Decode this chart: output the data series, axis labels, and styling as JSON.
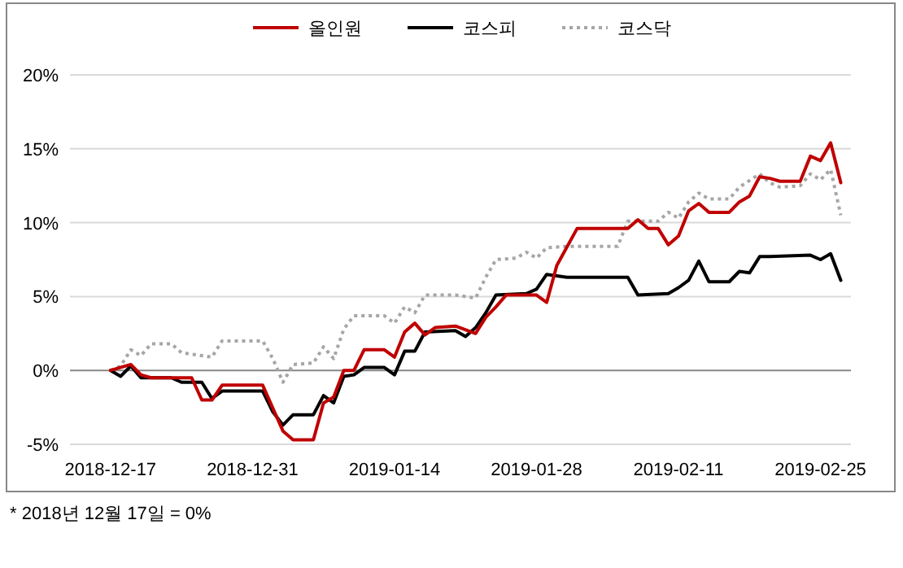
{
  "chart_data": {
    "type": "line",
    "legend": "top",
    "grid": "y",
    "xlim": [
      "2018-12-13",
      "2019-02-28"
    ],
    "xticks": [
      "2018-12-17",
      "2018-12-31",
      "2019-01-14",
      "2019-01-28",
      "2019-02-11",
      "2019-02-25"
    ],
    "ylim": [
      -5,
      20
    ],
    "yticks": [
      {
        "value": -5,
        "label": "-5%"
      },
      {
        "value": 0,
        "label": "0%"
      },
      {
        "value": 5,
        "label": "5%"
      },
      {
        "value": 10,
        "label": "10%"
      },
      {
        "value": 15,
        "label": "15%"
      },
      {
        "value": 20,
        "label": "20%"
      }
    ],
    "annotations": [
      "* 2018년 12월 17일 = 0%"
    ],
    "series": [
      {
        "name": "올인원",
        "color": "#c00000",
        "line_style": "solid",
        "x": [
          "2018-12-17",
          "2018-12-19",
          "2018-12-20",
          "2018-12-21",
          "2018-12-25",
          "2018-12-26",
          "2018-12-27",
          "2018-12-28",
          "2019-01-01",
          "2019-01-03",
          "2019-01-04",
          "2019-01-06",
          "2019-01-07",
          "2019-01-08",
          "2019-01-09",
          "2019-01-10",
          "2019-01-11",
          "2019-01-13",
          "2019-01-14",
          "2019-01-15",
          "2019-01-16",
          "2019-01-17",
          "2019-01-18",
          "2019-01-20",
          "2019-01-22",
          "2019-01-23",
          "2019-01-24",
          "2019-01-25",
          "2019-01-28",
          "2019-01-29",
          "2019-01-30",
          "2019-02-01",
          "2019-02-06",
          "2019-02-07",
          "2019-02-08",
          "2019-02-09",
          "2019-02-10",
          "2019-02-11",
          "2019-02-12",
          "2019-02-13",
          "2019-02-14",
          "2019-02-16",
          "2019-02-17",
          "2019-02-18",
          "2019-02-19",
          "2019-02-20",
          "2019-02-21",
          "2019-02-23",
          "2019-02-24",
          "2019-02-25",
          "2019-02-26",
          "2019-02-27"
        ],
        "values": [
          0,
          0.4,
          -0.3,
          -0.5,
          -0.5,
          -2.0,
          -2.0,
          -1.0,
          -1.0,
          -4.1,
          -4.7,
          -4.7,
          -2.2,
          -1.8,
          0,
          0,
          1.4,
          1.4,
          0.9,
          2.6,
          3.2,
          2.4,
          2.9,
          3.0,
          2.5,
          3.6,
          4.3,
          5.1,
          5.1,
          4.6,
          7.1,
          9.6,
          9.6,
          10.2,
          9.6,
          9.6,
          8.5,
          9.1,
          10.8,
          11.3,
          10.7,
          10.7,
          11.4,
          11.8,
          13.1,
          13.0,
          12.8,
          12.8,
          14.5,
          14.2,
          15.4,
          12.7
        ]
      },
      {
        "name": "코스피",
        "color": "#000000",
        "line_style": "solid",
        "x": [
          "2018-12-17",
          "2018-12-18",
          "2018-12-19",
          "2018-12-20",
          "2018-12-23",
          "2018-12-24",
          "2018-12-26",
          "2018-12-27",
          "2018-12-28",
          "2019-01-01",
          "2019-01-02",
          "2019-01-03",
          "2019-01-04",
          "2019-01-06",
          "2019-01-07",
          "2019-01-08",
          "2019-01-09",
          "2019-01-10",
          "2019-01-11",
          "2019-01-13",
          "2019-01-14",
          "2019-01-15",
          "2019-01-16",
          "2019-01-17",
          "2019-01-20",
          "2019-01-21",
          "2019-01-22",
          "2019-01-23",
          "2019-01-24",
          "2019-01-27",
          "2019-01-28",
          "2019-01-29",
          "2019-01-31",
          "2019-02-06",
          "2019-02-07",
          "2019-02-10",
          "2019-02-11",
          "2019-02-12",
          "2019-02-13",
          "2019-02-14",
          "2019-02-16",
          "2019-02-17",
          "2019-02-18",
          "2019-02-19",
          "2019-02-20",
          "2019-02-24",
          "2019-02-25",
          "2019-02-26",
          "2019-02-27"
        ],
        "values": [
          0,
          -0.4,
          0.3,
          -0.5,
          -0.5,
          -0.8,
          -0.8,
          -1.9,
          -1.4,
          -1.4,
          -2.8,
          -3.7,
          -3.0,
          -3.0,
          -1.7,
          -2.2,
          -0.4,
          -0.3,
          0.2,
          0.2,
          -0.3,
          1.3,
          1.3,
          2.6,
          2.7,
          2.3,
          2.9,
          3.9,
          5.1,
          5.2,
          5.5,
          6.5,
          6.3,
          6.3,
          5.1,
          5.2,
          5.6,
          6.1,
          7.4,
          6.0,
          6.0,
          6.7,
          6.6,
          7.7,
          7.7,
          7.8,
          7.5,
          7.9,
          6.1
        ]
      },
      {
        "name": "코스닥",
        "color": "#a6a6a6",
        "line_style": "dotted",
        "x": [
          "2018-12-17",
          "2018-12-18",
          "2018-12-19",
          "2018-12-20",
          "2018-12-21",
          "2018-12-23",
          "2018-12-24",
          "2018-12-27",
          "2018-12-28",
          "2019-01-01",
          "2019-01-02",
          "2019-01-03",
          "2019-01-04",
          "2019-01-06",
          "2019-01-07",
          "2019-01-08",
          "2019-01-09",
          "2019-01-10",
          "2019-01-11",
          "2019-01-13",
          "2019-01-14",
          "2019-01-15",
          "2019-01-16",
          "2019-01-17",
          "2019-01-20",
          "2019-01-22",
          "2019-01-23",
          "2019-01-24",
          "2019-01-26",
          "2019-01-27",
          "2019-01-28",
          "2019-01-29",
          "2019-01-31",
          "2019-02-05",
          "2019-02-06",
          "2019-02-09",
          "2019-02-10",
          "2019-02-11",
          "2019-02-12",
          "2019-02-13",
          "2019-02-14",
          "2019-02-16",
          "2019-02-17",
          "2019-02-19",
          "2019-02-20",
          "2019-02-21",
          "2019-02-23",
          "2019-02-24",
          "2019-02-25",
          "2019-02-26",
          "2019-02-27"
        ],
        "values": [
          0,
          0.3,
          1.4,
          1.0,
          1.8,
          1.8,
          1.2,
          0.9,
          2.0,
          2.0,
          0.8,
          -0.8,
          0.4,
          0.5,
          1.6,
          0.8,
          2.8,
          3.7,
          3.7,
          3.7,
          3.2,
          4.3,
          3.9,
          5.1,
          5.1,
          4.9,
          6.3,
          7.5,
          7.6,
          8.0,
          7.6,
          8.3,
          8.4,
          8.4,
          10.1,
          10.1,
          10.7,
          10.3,
          11.4,
          12.0,
          11.6,
          11.6,
          12.4,
          13.3,
          12.7,
          12.4,
          12.5,
          13.3,
          12.9,
          13.6,
          10.5
        ]
      }
    ]
  }
}
